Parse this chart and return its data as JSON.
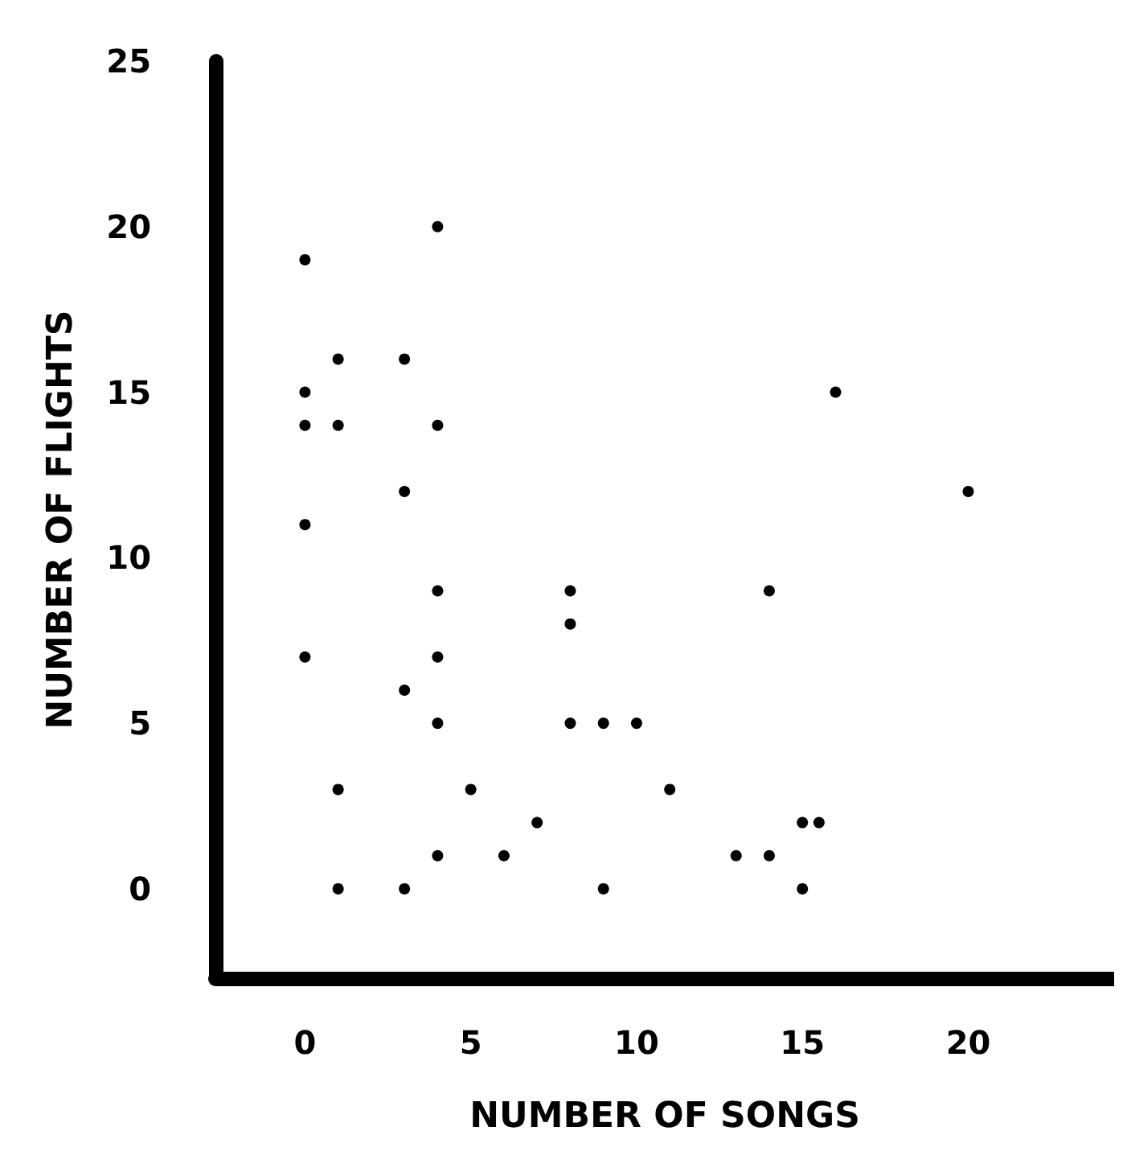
{
  "chart_data": {
    "type": "scatter",
    "xlabel": "NUMBER OF SONGS",
    "ylabel": "NUMBER OF FLIGHTS",
    "series": [
      {
        "color": "#000000",
        "x": [
          0,
          4,
          0,
          0,
          1,
          1,
          3,
          4,
          0,
          3,
          4,
          0,
          4,
          3,
          4,
          1,
          5,
          4,
          6,
          7,
          1,
          3,
          8,
          8,
          8,
          9,
          10,
          9,
          11,
          13,
          14,
          14,
          15,
          15,
          15.5,
          16,
          20
        ],
        "values": [
          19,
          20,
          15,
          14,
          16,
          14,
          16,
          14,
          11,
          12,
          9,
          7,
          7,
          6,
          5,
          3,
          3,
          1,
          1,
          2,
          0,
          0,
          9,
          8,
          5,
          5,
          5,
          0,
          3,
          1,
          1,
          9,
          0,
          2,
          2,
          15,
          12
        ]
      }
    ],
    "xlim": [
      -2.7,
      24.4
    ],
    "ylim": [
      -2.7,
      25
    ],
    "xticks": [
      0,
      5,
      10,
      15,
      20
    ],
    "yticks": [
      0,
      5,
      10,
      15,
      20,
      25
    ],
    "grid": false,
    "marker": "circle"
  }
}
